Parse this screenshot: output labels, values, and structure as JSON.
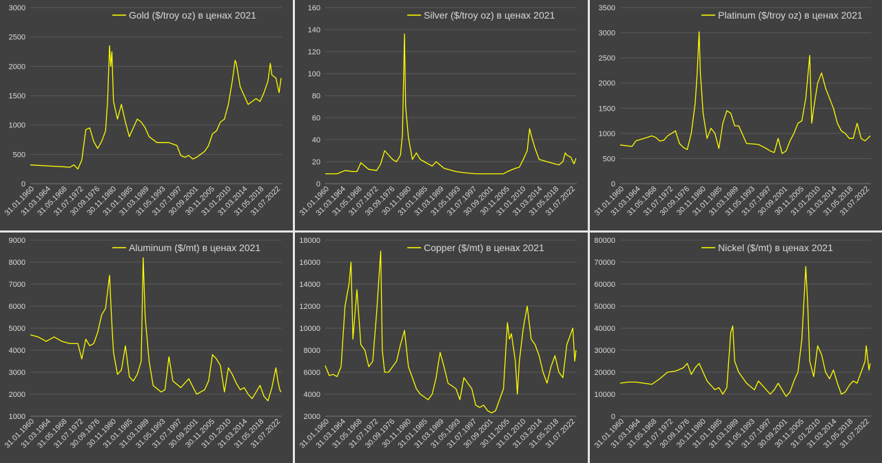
{
  "chart_data": [
    {
      "type": "line",
      "legend": "Gold ($/troy oz) в ценах 2021",
      "ylim": [
        0,
        3000
      ],
      "yticks": [
        "0",
        "500",
        "1000",
        "1500",
        "2000",
        "2500",
        "3000"
      ],
      "xticks": [
        "31.01.1960",
        "31.03.1964",
        "31.05.1968",
        "31.07.1972",
        "30.09.1976",
        "30.11.1980",
        "31.01.1985",
        "31.03.1989",
        "31.05.1993",
        "31.07.1997",
        "30.09.2001",
        "30.11.2005",
        "31.01.2010",
        "31.03.2014",
        "31.05.2018",
        "31.07.2022"
      ],
      "grid": true,
      "legend_position": "top-right",
      "x": [
        1960,
        1965,
        1968,
        1970,
        1971,
        1972,
        1973,
        1974,
        1975,
        1976,
        1977,
        1978,
        1979,
        1979.5,
        1980,
        1980.3,
        1980.6,
        1981,
        1982,
        1983,
        1984,
        1985,
        1986,
        1987,
        1988,
        1989,
        1990,
        1992,
        1995,
        1997,
        1998,
        1999,
        2000,
        2001,
        2002,
        2003,
        2004,
        2005,
        2006,
        2007,
        2008,
        2009,
        2010,
        2011,
        2011.7,
        2012,
        2013,
        2014,
        2015,
        2016,
        2017,
        2018,
        2019,
        2020,
        2020.6,
        2021,
        2022,
        2022.8,
        2023.3
      ],
      "values": [
        320,
        300,
        290,
        280,
        320,
        250,
        400,
        920,
        950,
        720,
        600,
        720,
        900,
        1400,
        2350,
        2000,
        2250,
        1400,
        1100,
        1350,
        1050,
        800,
        950,
        1100,
        1050,
        950,
        800,
        700,
        700,
        650,
        480,
        450,
        480,
        420,
        450,
        500,
        550,
        650,
        850,
        900,
        1050,
        1100,
        1350,
        1750,
        2100,
        2050,
        1650,
        1500,
        1350,
        1400,
        1450,
        1400,
        1550,
        1750,
        2050,
        1850,
        1800,
        1550,
        1800
      ]
    },
    {
      "type": "line",
      "legend": "Silver ($/troy oz) в ценах 2021",
      "ylim": [
        0,
        160
      ],
      "yticks": [
        "0",
        "20",
        "40",
        "60",
        "80",
        "100",
        "120",
        "140",
        "160"
      ],
      "xticks": [
        "31.01.1960",
        "31.03.1964",
        "31.05.1968",
        "31.07.1972",
        "30.09.1976",
        "30.11.1980",
        "31.01.1985",
        "31.03.1989",
        "31.05.1993",
        "31.07.1997",
        "30.09.2001",
        "30.11.2005",
        "31.01.2010",
        "31.03.2014",
        "31.05.2018",
        "31.07.2022"
      ],
      "grid": true,
      "legend_position": "top-right",
      "x": [
        1960,
        1963,
        1965,
        1967,
        1968,
        1969,
        1971,
        1973,
        1974,
        1975,
        1977,
        1978,
        1979,
        1979.5,
        1980,
        1980.3,
        1981,
        1982,
        1983,
        1984,
        1985,
        1987,
        1988,
        1990,
        1993,
        1995,
        1998,
        2001,
        2003,
        2005,
        2006,
        2008,
        2009,
        2010,
        2011,
        2011.6,
        2012,
        2013,
        2014,
        2016,
        2018,
        2019,
        2020,
        2020.6,
        2021,
        2022,
        2022.8,
        2023.3
      ],
      "values": [
        9,
        9,
        12,
        11,
        11,
        19,
        13,
        12,
        18,
        30,
        22,
        20,
        26,
        45,
        136,
        70,
        42,
        22,
        28,
        22,
        20,
        16,
        20,
        14,
        11,
        10,
        9,
        9,
        9,
        9,
        11,
        14,
        15,
        22,
        30,
        50,
        44,
        32,
        22,
        20,
        18,
        17,
        20,
        28,
        26,
        24,
        18,
        23
      ]
    },
    {
      "type": "line",
      "legend": "Platinum ($/troy oz) в ценах 2021",
      "ylim": [
        0,
        3500
      ],
      "yticks": [
        "0",
        "500",
        "1000",
        "1500",
        "2000",
        "2500",
        "3000",
        "3500"
      ],
      "xticks": [
        "31.01.1960",
        "31.03.1964",
        "31.05.1968",
        "31.07.1972",
        "30.09.1976",
        "30.11.1980",
        "31.01.1985",
        "31.03.1989",
        "31.05.1993",
        "31.07.1997",
        "30.09.2001",
        "30.11.2005",
        "31.01.2010",
        "31.03.2014",
        "31.05.2018",
        "31.07.2022"
      ],
      "grid": true,
      "legend_position": "top-right",
      "x": [
        1960,
        1963,
        1964,
        1966,
        1968,
        1969,
        1970,
        1971,
        1972,
        1973,
        1974,
        1975,
        1976,
        1977,
        1978,
        1979,
        1979.5,
        1980,
        1980.3,
        1981,
        1982,
        1983,
        1984,
        1985,
        1986,
        1987,
        1988,
        1989,
        1990,
        1992,
        1995,
        1997,
        1998,
        1999,
        2000,
        2001,
        2002,
        2003,
        2004,
        2005,
        2006,
        2007,
        2008,
        2008.5,
        2009,
        2010,
        2011,
        2012,
        2013,
        2014,
        2015,
        2016,
        2017,
        2018,
        2019,
        2020,
        2021,
        2022,
        2023.3
      ],
      "values": [
        770,
        740,
        850,
        900,
        950,
        920,
        850,
        860,
        950,
        1000,
        1050,
        800,
        720,
        680,
        1000,
        1600,
        2200,
        3020,
        2200,
        1400,
        900,
        1100,
        1000,
        700,
        1200,
        1450,
        1400,
        1150,
        1150,
        800,
        780,
        700,
        650,
        620,
        900,
        600,
        650,
        850,
        1000,
        1200,
        1250,
        1700,
        2550,
        1200,
        1500,
        2000,
        2200,
        1900,
        1700,
        1500,
        1200,
        1050,
        1000,
        900,
        900,
        1200,
        900,
        850,
        950
      ]
    },
    {
      "type": "line",
      "legend": "Aluminum ($/mt) в ценах 2021",
      "ylim": [
        1000,
        9000
      ],
      "yticks": [
        "1000",
        "2000",
        "3000",
        "4000",
        "5000",
        "6000",
        "7000",
        "8000",
        "9000"
      ],
      "xticks": [
        "31.01.1960",
        "31.03.1964",
        "31.05.1968",
        "31.07.1972",
        "30.09.1976",
        "30.11.1980",
        "31.01.1985",
        "31.03.1989",
        "31.05.1993",
        "31.07.1997",
        "30.09.2001",
        "30.11.2005",
        "31.01.2010",
        "31.03.2014",
        "31.05.2018",
        "31.07.2022"
      ],
      "grid": true,
      "legend_position": "top-right",
      "x": [
        1960,
        1962,
        1964,
        1966,
        1968,
        1970,
        1972,
        1973,
        1974,
        1975,
        1976,
        1977,
        1978,
        1979,
        1980,
        1980.5,
        1981,
        1982,
        1983,
        1984,
        1985,
        1986,
        1987,
        1988,
        1988.5,
        1989,
        1990,
        1991,
        1993,
        1994,
        1995,
        1996,
        1998,
        1999,
        2000,
        2002,
        2004,
        2005,
        2006,
        2007,
        2008,
        2009,
        2010,
        2011,
        2012,
        2013,
        2014,
        2015,
        2016,
        2018,
        2019,
        2020,
        2021,
        2022,
        2022.5,
        2023,
        2023.3
      ],
      "values": [
        4700,
        4600,
        4400,
        4600,
        4400,
        4300,
        4300,
        3600,
        4500,
        4200,
        4300,
        4800,
        5600,
        5900,
        7400,
        5500,
        3900,
        2900,
        3100,
        4200,
        2800,
        2600,
        2900,
        3500,
        8200,
        5500,
        3500,
        2400,
        2100,
        2200,
        3700,
        2600,
        2300,
        2500,
        2700,
        2000,
        2200,
        2600,
        3800,
        3600,
        3300,
        2100,
        3200,
        2900,
        2500,
        2200,
        2300,
        2000,
        1800,
        2400,
        1900,
        1700,
        2300,
        3200,
        2600,
        2200,
        2100
      ]
    },
    {
      "type": "line",
      "legend": "Copper ($/mt) в ценах 2021",
      "ylim": [
        2000,
        18000
      ],
      "yticks": [
        "2000",
        "4000",
        "6000",
        "8000",
        "10000",
        "12000",
        "14000",
        "16000",
        "18000"
      ],
      "xticks": [
        "31.01.1960",
        "31.03.1964",
        "31.05.1968",
        "31.07.1972",
        "30.09.1976",
        "30.11.1980",
        "31.01.1985",
        "31.03.1989",
        "31.05.1993",
        "31.07.1997",
        "30.09.2001",
        "30.11.2005",
        "31.01.2010",
        "31.03.2014",
        "31.05.2018",
        "31.07.2022"
      ],
      "grid": true,
      "legend_position": "top-right",
      "x": [
        1960,
        1961,
        1962,
        1963,
        1964,
        1965,
        1966,
        1966.5,
        1967,
        1968,
        1969,
        1970,
        1971,
        1972,
        1973,
        1974,
        1974.4,
        1975,
        1976,
        1977,
        1978,
        1979,
        1980,
        1981,
        1982,
        1983,
        1984,
        1986,
        1987,
        1988,
        1989,
        1990,
        1991,
        1993,
        1994,
        1995,
        1996,
        1997,
        1998,
        1999,
        2000,
        2001,
        2002,
        2003,
        2004,
        2005,
        2006,
        2006.5,
        2007,
        2008,
        2008.5,
        2009,
        2010,
        2011,
        2012,
        2013,
        2014,
        2015,
        2016,
        2017,
        2018,
        2019,
        2020,
        2021,
        2022,
        2022.5,
        2023,
        2023.3
      ],
      "values": [
        6600,
        5700,
        5800,
        5600,
        6500,
        12000,
        14000,
        16000,
        9000,
        13500,
        8500,
        8000,
        6500,
        7000,
        11500,
        17000,
        8000,
        6000,
        6000,
        6500,
        7000,
        8500,
        9800,
        6500,
        5500,
        4500,
        4000,
        3500,
        4000,
        5500,
        7800,
        6500,
        5000,
        4500,
        3500,
        5500,
        5000,
        4500,
        3000,
        2800,
        3000,
        2500,
        2300,
        2500,
        3500,
        4500,
        10500,
        9000,
        9500,
        7000,
        4000,
        7000,
        10000,
        12000,
        9000,
        8500,
        7500,
        6000,
        5000,
        6500,
        7500,
        6000,
        5500,
        8500,
        9500,
        10000,
        7000,
        8000
      ]
    },
    {
      "type": "line",
      "legend": "Nickel ($/mt) в ценах 2021",
      "ylim": [
        0,
        80000
      ],
      "yticks": [
        "0",
        "10000",
        "20000",
        "30000",
        "40000",
        "50000",
        "60000",
        "70000",
        "80000"
      ],
      "xticks": [
        "31.01.1960",
        "31.03.1964",
        "31.05.1968",
        "31.07.1972",
        "30.09.1976",
        "30.11.1980",
        "31.01.1985",
        "31.03.1989",
        "31.05.1993",
        "31.07.1997",
        "30.09.2001",
        "30.11.2005",
        "31.01.2010",
        "31.03.2014",
        "31.05.2018",
        "31.07.2022"
      ],
      "grid": true,
      "legend_position": "top-right",
      "x": [
        1960,
        1962,
        1964,
        1966,
        1968,
        1970,
        1972,
        1974,
        1976,
        1977,
        1978,
        1979,
        1980,
        1981,
        1982,
        1983,
        1984,
        1985,
        1986,
        1987,
        1988,
        1988.5,
        1989,
        1990,
        1992,
        1994,
        1995,
        1996,
        1998,
        1999,
        2000,
        2002,
        2003,
        2004,
        2005,
        2006,
        2007,
        2007.5,
        2008,
        2009,
        2010,
        2011,
        2012,
        2013,
        2014,
        2015,
        2016,
        2017,
        2018,
        2019,
        2020,
        2021,
        2022,
        2022.3,
        2023,
        2023.3
      ],
      "values": [
        15000,
        15500,
        15500,
        15000,
        14500,
        17000,
        20000,
        20500,
        22000,
        24000,
        19000,
        22000,
        24000,
        20000,
        16000,
        14000,
        12000,
        13000,
        10000,
        13000,
        38000,
        41000,
        25000,
        20000,
        15000,
        12000,
        16000,
        14000,
        10000,
        12000,
        15000,
        9000,
        11000,
        16000,
        20000,
        35000,
        68000,
        50000,
        25000,
        18000,
        32000,
        28000,
        20000,
        17000,
        21000,
        15000,
        10000,
        11000,
        14000,
        16000,
        15000,
        20000,
        25000,
        32000,
        21000,
        24000
      ]
    }
  ]
}
